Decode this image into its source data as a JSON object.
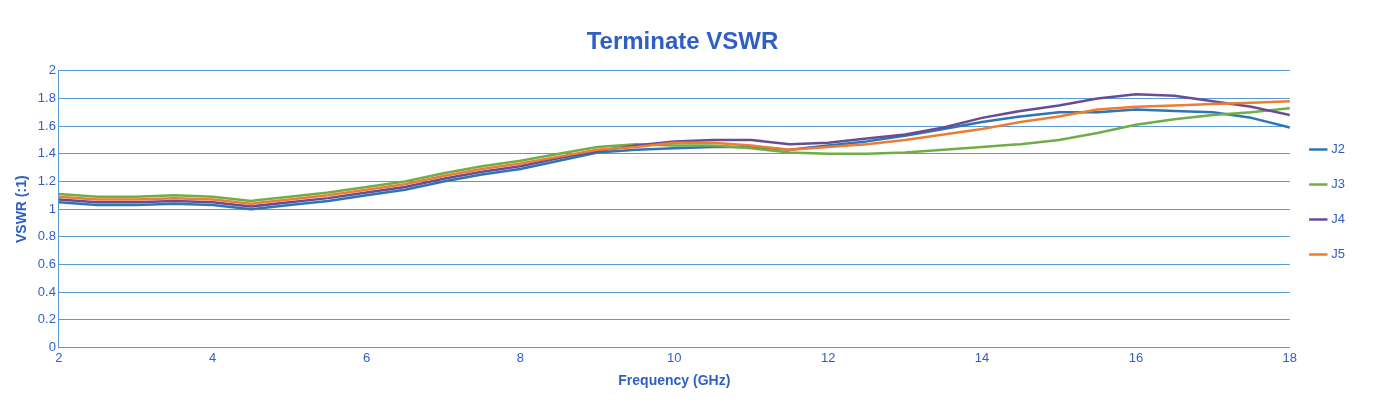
{
  "chart_data": {
    "type": "line",
    "title": "Terminate VSWR",
    "xlabel": "Frequency (GHz)",
    "ylabel": "VSWR (:1)",
    "x": [
      2,
      2.5,
      3,
      3.5,
      4,
      4.5,
      5,
      5.5,
      6,
      6.5,
      7,
      7.5,
      8,
      8.5,
      9,
      9.5,
      10,
      10.5,
      11,
      11.5,
      12,
      12.5,
      13,
      13.5,
      14,
      14.5,
      15,
      15.5,
      16,
      16.5,
      17,
      17.5,
      18
    ],
    "series": [
      {
        "name": "J2",
        "color": "#2e75b6",
        "values": [
          1.05,
          1.03,
          1.03,
          1.04,
          1.03,
          1.0,
          1.03,
          1.06,
          1.1,
          1.14,
          1.2,
          1.25,
          1.29,
          1.35,
          1.41,
          1.43,
          1.44,
          1.45,
          1.45,
          1.43,
          1.46,
          1.49,
          1.53,
          1.58,
          1.63,
          1.67,
          1.7,
          1.7,
          1.72,
          1.71,
          1.7,
          1.66,
          1.59
        ]
      },
      {
        "name": "J3",
        "color": "#70ad47",
        "values": [
          1.11,
          1.09,
          1.09,
          1.1,
          1.09,
          1.06,
          1.09,
          1.12,
          1.16,
          1.2,
          1.26,
          1.31,
          1.35,
          1.4,
          1.45,
          1.47,
          1.46,
          1.46,
          1.44,
          1.41,
          1.4,
          1.4,
          1.41,
          1.43,
          1.45,
          1.47,
          1.5,
          1.55,
          1.61,
          1.65,
          1.68,
          1.7,
          1.73
        ]
      },
      {
        "name": "J4",
        "color": "#6a4c93",
        "values": [
          1.07,
          1.05,
          1.05,
          1.06,
          1.05,
          1.02,
          1.05,
          1.08,
          1.12,
          1.16,
          1.22,
          1.27,
          1.31,
          1.37,
          1.42,
          1.46,
          1.49,
          1.5,
          1.5,
          1.47,
          1.48,
          1.51,
          1.54,
          1.59,
          1.66,
          1.71,
          1.75,
          1.8,
          1.83,
          1.82,
          1.78,
          1.74,
          1.68
        ]
      },
      {
        "name": "J5",
        "color": "#ed7d31",
        "values": [
          1.09,
          1.07,
          1.07,
          1.08,
          1.07,
          1.04,
          1.07,
          1.1,
          1.14,
          1.18,
          1.24,
          1.29,
          1.33,
          1.38,
          1.43,
          1.45,
          1.48,
          1.48,
          1.46,
          1.43,
          1.45,
          1.47,
          1.5,
          1.54,
          1.58,
          1.63,
          1.67,
          1.72,
          1.74,
          1.75,
          1.76,
          1.77,
          1.78
        ]
      }
    ],
    "xlim": [
      2,
      18
    ],
    "xticks": [
      2,
      4,
      6,
      8,
      10,
      12,
      14,
      16,
      18
    ],
    "ylim": [
      0,
      2
    ],
    "yticks": [
      0,
      0.2,
      0.4,
      0.6,
      0.8,
      1,
      1.2,
      1.4,
      1.6,
      1.8,
      2
    ],
    "grid": "y",
    "legend": "right",
    "marker": "none",
    "line_style": "solid"
  }
}
